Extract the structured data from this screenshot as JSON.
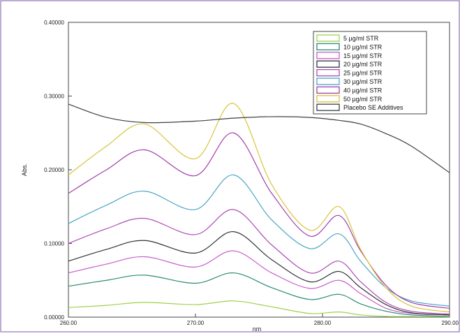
{
  "chart_data": {
    "type": "line",
    "xlabel": "nm",
    "ylabel": "Abs.",
    "xlim": [
      260,
      290
    ],
    "ylim": [
      0,
      0.4
    ],
    "x_ticks": [
      260,
      270,
      280,
      290
    ],
    "x_tick_labels": [
      "260.00",
      "270.00",
      "280.00",
      "290.00"
    ],
    "y_ticks": [
      0,
      0.1,
      0.2,
      0.3,
      0.4
    ],
    "y_tick_labels": [
      "0.00000",
      "0.10000",
      "0.20000",
      "0.30000",
      "0.40000"
    ],
    "grid": false,
    "legend_position": "top-right",
    "series": [
      {
        "name": "5 µg/ml  STR",
        "color": "#9ed24b",
        "x": [
          260,
          263,
          266,
          270,
          273,
          276,
          279,
          281.3,
          283,
          285,
          287,
          290
        ],
        "y": [
          0.013,
          0.016,
          0.02,
          0.017,
          0.022,
          0.014,
          0.005,
          0.007,
          0.003,
          0.001,
          0.0008,
          0.0005
        ]
      },
      {
        "name": "10 µg/ml  STR",
        "color": "#2b8c74",
        "x": [
          260,
          263,
          266,
          270,
          273,
          276,
          279,
          281.3,
          283,
          285,
          287,
          290
        ],
        "y": [
          0.042,
          0.05,
          0.057,
          0.046,
          0.06,
          0.04,
          0.024,
          0.031,
          0.018,
          0.008,
          0.003,
          0.001
        ]
      },
      {
        "name": "15 µg/ml  STR",
        "color": "#c85cc8",
        "x": [
          260,
          263,
          266,
          270,
          273,
          276,
          279,
          281.3,
          283,
          285,
          287,
          290
        ],
        "y": [
          0.06,
          0.072,
          0.082,
          0.068,
          0.09,
          0.06,
          0.039,
          0.05,
          0.032,
          0.012,
          0.005,
          0.003
        ]
      },
      {
        "name": "20 µg/ml  STR",
        "color": "#2f3438",
        "x": [
          260,
          263,
          266,
          270,
          273,
          276,
          279,
          281.3,
          283,
          285,
          287,
          290
        ],
        "y": [
          0.076,
          0.092,
          0.104,
          0.087,
          0.116,
          0.078,
          0.048,
          0.062,
          0.04,
          0.017,
          0.006,
          0.003
        ]
      },
      {
        "name": "25 µg/ml  STR",
        "color": "#b04bb4",
        "x": [
          260,
          263,
          266,
          270,
          273,
          276,
          279,
          281.3,
          283,
          285,
          287,
          290
        ],
        "y": [
          0.1,
          0.12,
          0.134,
          0.112,
          0.146,
          0.098,
          0.06,
          0.076,
          0.048,
          0.02,
          0.008,
          0.004
        ]
      },
      {
        "name": "30 µg/ml  STR",
        "color": "#4aa6c6",
        "x": [
          260,
          263,
          266,
          270,
          273,
          276,
          279,
          281.3,
          283,
          285,
          287,
          290
        ],
        "y": [
          0.127,
          0.152,
          0.171,
          0.146,
          0.193,
          0.132,
          0.093,
          0.113,
          0.076,
          0.04,
          0.022,
          0.015
        ]
      },
      {
        "name": "40 µg/ml  STR",
        "color": "#a43ea8",
        "x": [
          260,
          263,
          266,
          270,
          273,
          276,
          279,
          281.3,
          283,
          285,
          287,
          290
        ],
        "y": [
          0.168,
          0.2,
          0.227,
          0.192,
          0.25,
          0.168,
          0.11,
          0.138,
          0.09,
          0.043,
          0.02,
          0.012
        ]
      },
      {
        "name": "50 µg/ml  STR",
        "color": "#d8c43a",
        "x": [
          260,
          263,
          266,
          270,
          273,
          276,
          279,
          281.3,
          283,
          285,
          287,
          290
        ],
        "y": [
          0.193,
          0.232,
          0.262,
          0.215,
          0.29,
          0.18,
          0.118,
          0.15,
          0.092,
          0.04,
          0.015,
          0.007
        ]
      },
      {
        "name": "Placebo SE Additives",
        "color": "#3a4048",
        "x": [
          260,
          263,
          266,
          270,
          273,
          276,
          279,
          281.3,
          283,
          285,
          287,
          290
        ],
        "y": [
          0.289,
          0.271,
          0.264,
          0.266,
          0.27,
          0.272,
          0.271,
          0.267,
          0.262,
          0.249,
          0.232,
          0.196
        ]
      }
    ]
  }
}
